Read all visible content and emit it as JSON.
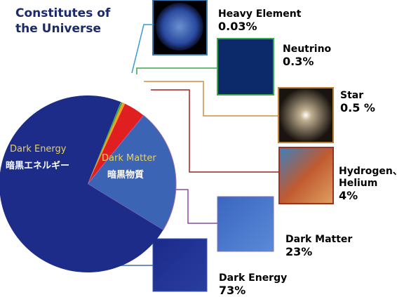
{
  "chart_data": {
    "type": "pie",
    "title": "Constitutes of the Universe",
    "categories": [
      "Heavy Element",
      "Neutrino",
      "Star",
      "Hydrogen、Helium",
      "Dark Matter",
      "Dark Energy"
    ],
    "values": [
      0.03,
      0.3,
      0.5,
      4,
      23,
      73
    ],
    "value_labels": [
      "0.03%",
      "0.3%",
      "0.5 %",
      "4%",
      "23%",
      "73%"
    ],
    "colors": [
      "#2aa0c8",
      "#3aa848",
      "#f0a020",
      "#e02020",
      "#3c64b4",
      "#1c2c88"
    ],
    "inner_labels": [
      {
        "en": "Dark Energy",
        "ja": "暗黒エネルギー"
      },
      {
        "en": "Dark Matter",
        "ja": "暗黒物質"
      }
    ]
  }
}
